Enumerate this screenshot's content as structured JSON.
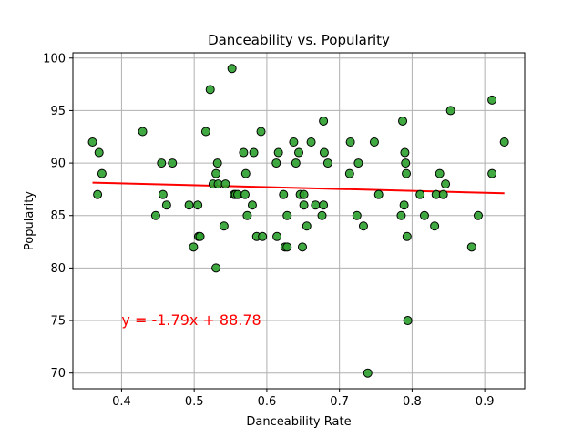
{
  "chart_data": {
    "type": "scatter",
    "title": "Danceability vs. Popularity",
    "xlabel": "Danceability Rate",
    "ylabel": "Popularity",
    "xlim": [
      0.333,
      0.955
    ],
    "ylim": [
      68.5,
      100.5
    ],
    "xticks": [
      0.4,
      0.5,
      0.6,
      0.7,
      0.8,
      0.9
    ],
    "xtick_labels": [
      "0.4",
      "0.5",
      "0.6",
      "0.7",
      "0.8",
      "0.9"
    ],
    "yticks": [
      70,
      75,
      80,
      85,
      90,
      95,
      100
    ],
    "ytick_labels": [
      "70",
      "75",
      "80",
      "85",
      "90",
      "95",
      "100"
    ],
    "grid": true,
    "point_color": "#2ca02c",
    "line_color": "#ff0000",
    "regression": {
      "slope": -1.79,
      "intercept": 88.78,
      "x_range": [
        0.36,
        0.927
      ],
      "equation": "y = -1.79x + 88.78",
      "label_position": [
        0.4,
        75
      ]
    },
    "series": [
      {
        "x": [
          0.36,
          0.367,
          0.369,
          0.373,
          0.429,
          0.447,
          0.455,
          0.457,
          0.462,
          0.47,
          0.493,
          0.499,
          0.505,
          0.506,
          0.508,
          0.516,
          0.522,
          0.526,
          0.53,
          0.53,
          0.532,
          0.533,
          0.541,
          0.543,
          0.552,
          0.555,
          0.557,
          0.56,
          0.568,
          0.57,
          0.571,
          0.573,
          0.58,
          0.582,
          0.586,
          0.592,
          0.594,
          0.613,
          0.614,
          0.616,
          0.623,
          0.625,
          0.628,
          0.628,
          0.637,
          0.64,
          0.644,
          0.646,
          0.649,
          0.651,
          0.651,
          0.655,
          0.661,
          0.667,
          0.676,
          0.678,
          0.678,
          0.679,
          0.684,
          0.714,
          0.715,
          0.724,
          0.726,
          0.733,
          0.739,
          0.748,
          0.754,
          0.785,
          0.787,
          0.789,
          0.79,
          0.791,
          0.792,
          0.793,
          0.794,
          0.811,
          0.817,
          0.831,
          0.833,
          0.838,
          0.843,
          0.846,
          0.853,
          0.882,
          0.891,
          0.91,
          0.91,
          0.927
        ],
        "y": [
          92,
          87,
          91,
          89,
          93,
          85,
          90,
          87,
          86,
          90,
          86,
          82,
          86,
          83,
          83,
          93,
          97,
          88,
          80,
          89,
          90,
          88,
          84,
          88,
          99,
          87,
          87,
          87,
          91,
          87,
          89,
          85,
          86,
          91,
          83,
          93,
          83,
          90,
          83,
          91,
          87,
          82,
          82,
          85,
          92,
          90,
          91,
          87,
          82,
          86,
          87,
          84,
          92,
          86,
          85,
          94,
          86,
          91,
          90,
          89,
          92,
          85,
          90,
          84,
          70,
          92,
          87,
          85,
          94,
          86,
          91,
          90,
          89,
          83,
          75,
          87,
          85,
          84,
          87,
          89,
          87,
          88,
          95,
          82,
          85,
          96,
          89,
          92
        ]
      }
    ]
  }
}
